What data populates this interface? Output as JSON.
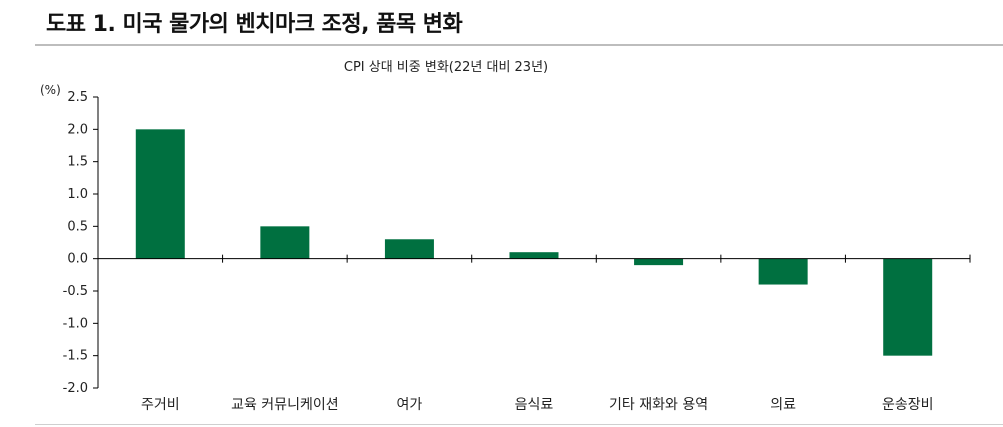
{
  "document": {
    "title": "도표 1. 미국 물가의 벤치마크 조정, 품목 변화"
  },
  "chart_data": {
    "type": "bar",
    "title": "CPI 상대 비중 변화(22년 대비 23년)",
    "unit_label": "(%)",
    "categories": [
      "주거비",
      "교육 커뮤니케이션",
      "여가",
      "음식료",
      "기타 재화와 용역",
      "의료",
      "운송장비"
    ],
    "values": [
      2.0,
      0.5,
      0.3,
      0.1,
      -0.1,
      -0.4,
      -1.5
    ],
    "ylim": [
      -2.0,
      2.5
    ],
    "yticks": [
      "2.5",
      "2.0",
      "1.5",
      "1.0",
      "0.5",
      "0.0",
      "-0.5",
      "-1.0",
      "-1.5",
      "-2.0"
    ],
    "bar_color": "#007040",
    "grid": false,
    "legend": "none"
  }
}
